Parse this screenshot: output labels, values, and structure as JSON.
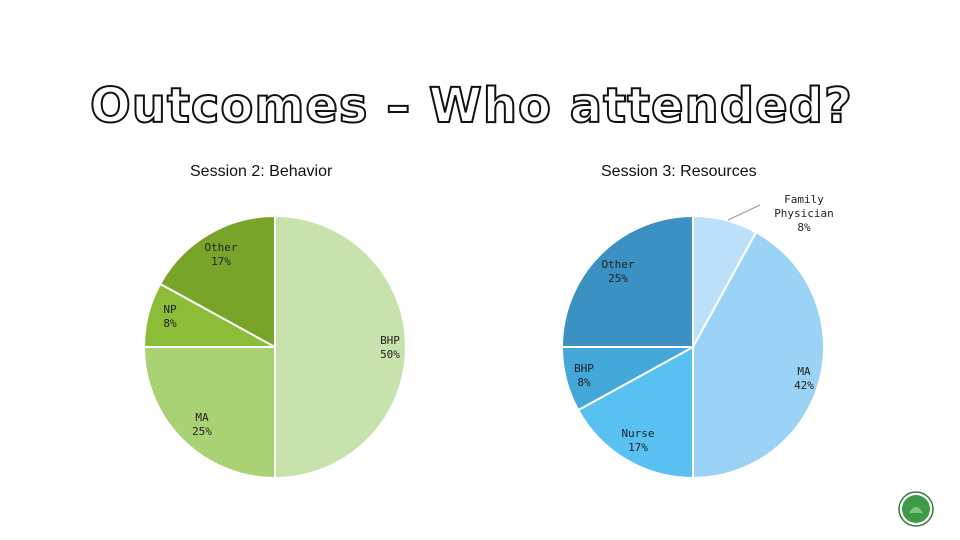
{
  "slide": {
    "title": "Outcomes – Who attended?"
  },
  "chart_data": [
    {
      "type": "pie",
      "title": "Session 2: Behavior",
      "categories": [
        "BHP",
        "MA",
        "NP",
        "Other"
      ],
      "values": [
        50,
        25,
        8,
        17
      ],
      "labels": [
        "50%",
        "25%",
        "8%",
        "17%"
      ],
      "colors": [
        "#c8e2ae",
        "#a9d275",
        "#8bbd38",
        "#78a42a"
      ]
    },
    {
      "type": "pie",
      "title": "Session 3: Resources",
      "categories": [
        "Family Physician",
        "MA",
        "Nurse",
        "BHP",
        "Other"
      ],
      "values": [
        8,
        42,
        17,
        8,
        25
      ],
      "labels": [
        "8%",
        "42%",
        "17%",
        "8%",
        "25%"
      ],
      "colors": [
        "#bde0fa",
        "#9ad3f5",
        "#58c1f2",
        "#43a7da",
        "#3b92c2"
      ]
    }
  ]
}
